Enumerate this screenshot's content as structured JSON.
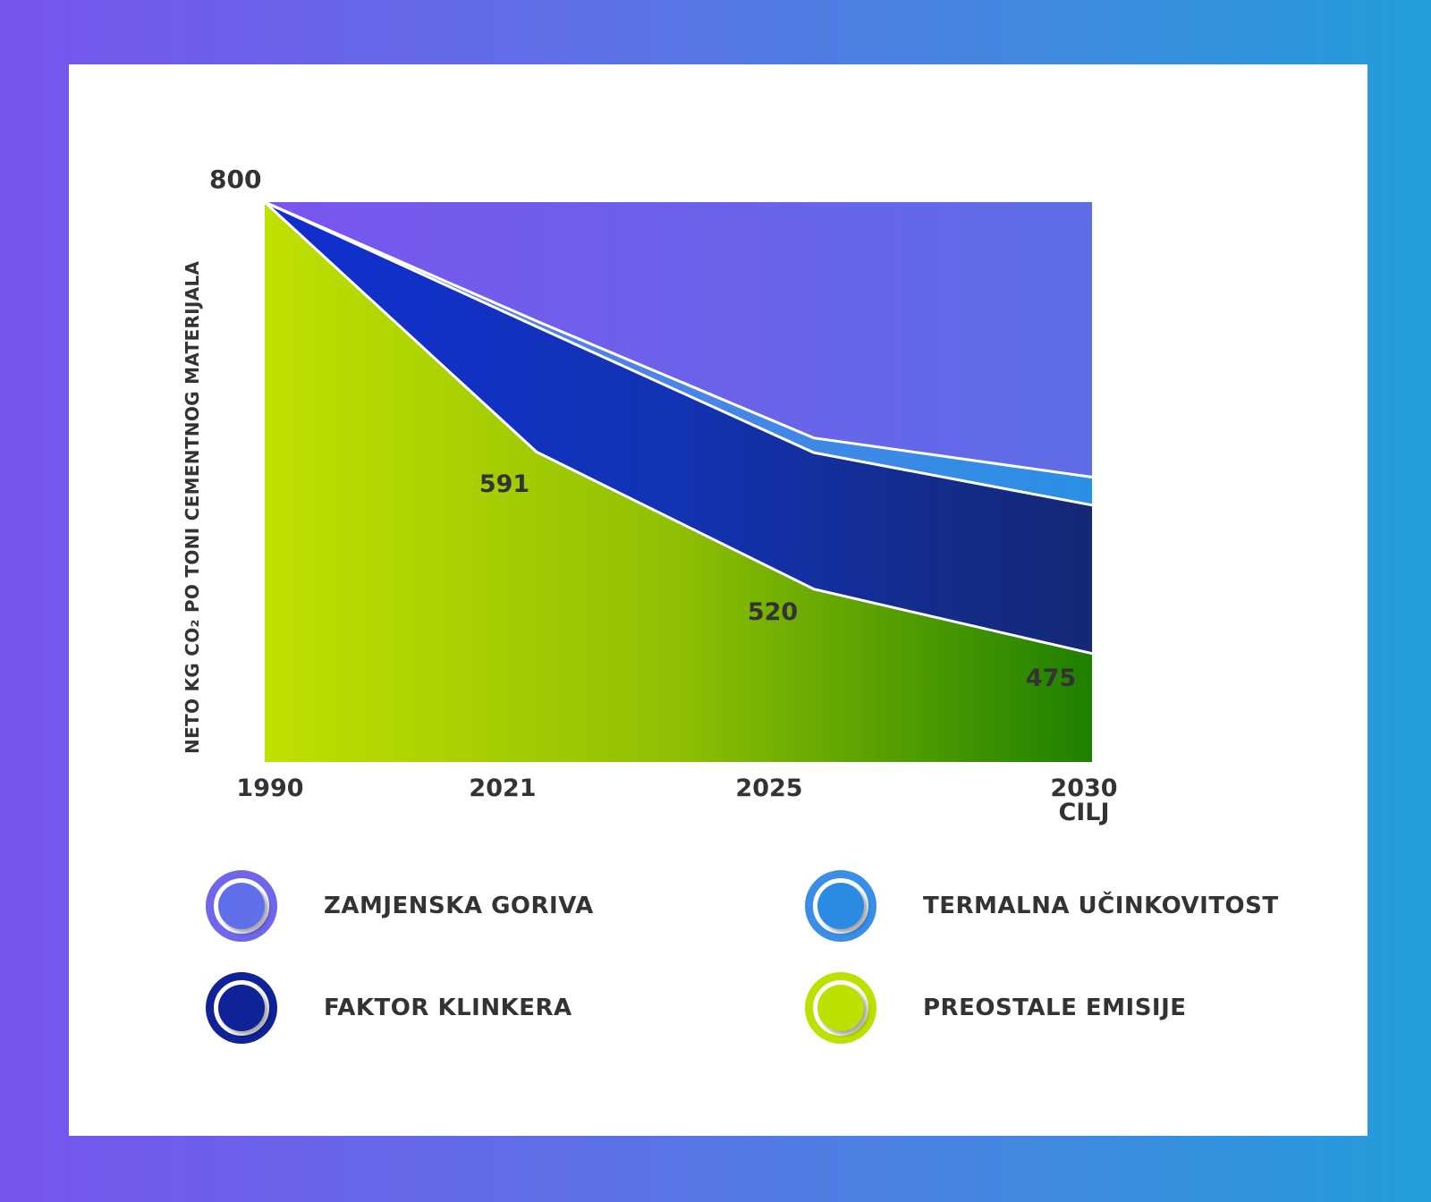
{
  "chart_data": {
    "type": "area",
    "title": "",
    "ylabel": "NETO KG CO₂ PO TONI CEMENTNOG MATERIJALA",
    "xlabel": "",
    "categories": [
      "1990",
      "2021",
      "2025",
      "2030\nCILJ"
    ],
    "peak_label": "800",
    "ylim": [
      0,
      800
    ],
    "series": [
      {
        "name": "PREOSTALE EMISIJE",
        "values": [
          800,
          443,
          247,
          155
        ],
        "color": "#bce000"
      },
      {
        "name": "FAKTOR KLINKERA",
        "values": [
          0,
          179,
          195,
          212
        ],
        "color": "#0e1f9e"
      },
      {
        "name": "TERMALNA UČINKOVITOST",
        "values": [
          0,
          8,
          21,
          40
        ],
        "color": "#3a8de8"
      },
      {
        "name": "ZAMJENSKA GORIVA",
        "values": [
          0,
          170,
          337,
          393
        ],
        "color": "#6a62ea"
      }
    ],
    "data_labels": [
      "",
      "591",
      "520",
      "475"
    ]
  },
  "legend": {
    "items": [
      {
        "label": "ZAMJENSKA GORIVA",
        "ring": "#6f66ea",
        "dot": "#6070ea"
      },
      {
        "label": "TERMALNA UČINKOVITOST",
        "ring": "#3a8ee6",
        "dot": "#2a8be3"
      },
      {
        "label": "FAKTOR KLINKERA",
        "ring": "#0f2296",
        "dot": "#0f2296"
      },
      {
        "label": "PREOSTALE EMISIJE",
        "ring": "#bde000",
        "dot": "#bde000"
      }
    ]
  }
}
